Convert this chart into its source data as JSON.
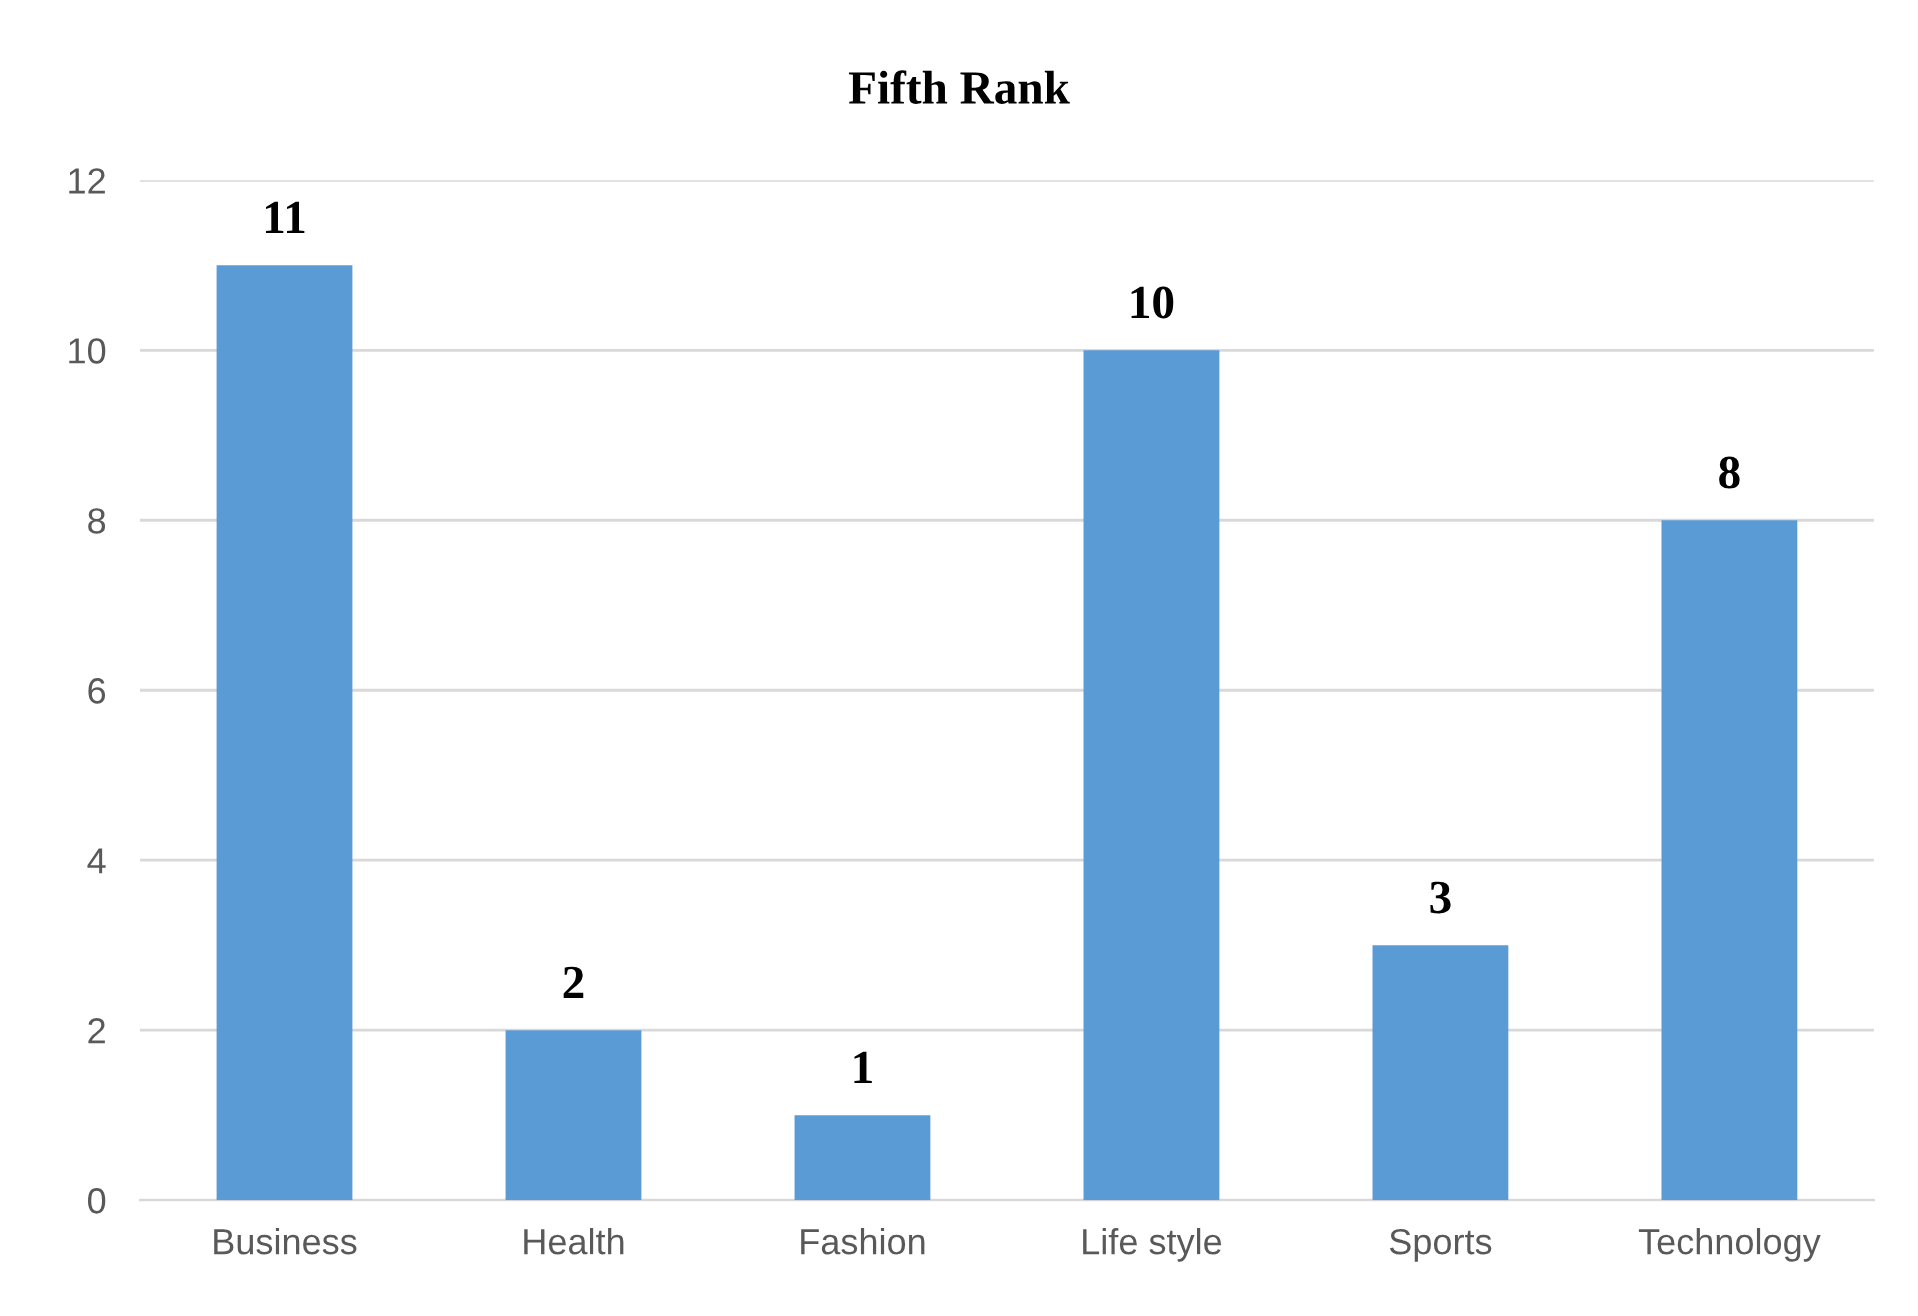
{
  "chart_data": {
    "type": "bar",
    "title": "Fifth Rank",
    "categories": [
      "Business",
      "Health",
      "Fashion",
      "Life style",
      "Sports",
      "Technology"
    ],
    "values": [
      11,
      2,
      1,
      10,
      3,
      8
    ],
    "color": "#5b9bd5",
    "ylim": [
      0,
      12
    ],
    "yticks": [
      0,
      2,
      4,
      6,
      8,
      10,
      12
    ],
    "grid": "y",
    "data_labels": true
  }
}
